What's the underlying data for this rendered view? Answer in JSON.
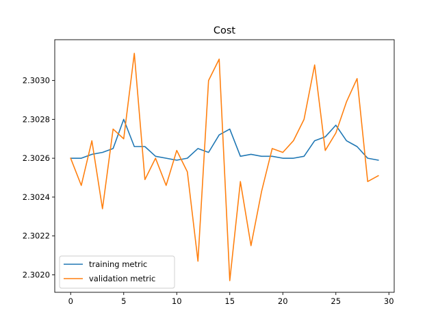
{
  "chart_data": {
    "type": "line",
    "title": "Cost",
    "xlabel": "",
    "ylabel": "",
    "xlim": [
      -1.5,
      30.5
    ],
    "ylim": [
      2.30191,
      2.30321
    ],
    "xticks": [
      0,
      5,
      10,
      15,
      20,
      25,
      30
    ],
    "yticks": [
      2.302,
      2.3022,
      2.3024,
      2.3026,
      2.3028,
      2.303
    ],
    "ytick_labels": [
      "2.3020",
      "2.3022",
      "2.3024",
      "2.3026",
      "2.3028",
      "2.3030"
    ],
    "grid": false,
    "legend_position": "lower-left",
    "x": [
      0,
      1,
      2,
      3,
      4,
      5,
      6,
      7,
      8,
      9,
      10,
      11,
      12,
      13,
      14,
      15,
      16,
      17,
      18,
      19,
      20,
      21,
      22,
      23,
      24,
      25,
      26,
      27,
      28,
      29
    ],
    "series": [
      {
        "name": "training metric",
        "color": "#1f77b4",
        "values": [
          2.3026,
          2.3026,
          2.30262,
          2.30263,
          2.30265,
          2.3028,
          2.30266,
          2.30266,
          2.30261,
          2.3026,
          2.30259,
          2.3026,
          2.30265,
          2.30263,
          2.30272,
          2.30275,
          2.30261,
          2.30262,
          2.30261,
          2.30261,
          2.3026,
          2.3026,
          2.30261,
          2.30269,
          2.30271,
          2.30277,
          2.30269,
          2.30266,
          2.3026,
          2.30259
        ]
      },
      {
        "name": "validation metric",
        "color": "#ff7f0e",
        "values": [
          2.3026,
          2.30246,
          2.30269,
          2.30234,
          2.30275,
          2.3027,
          2.30314,
          2.30249,
          2.3026,
          2.30246,
          2.30264,
          2.30253,
          2.30207,
          2.303,
          2.30311,
          2.30197,
          2.30248,
          2.30215,
          2.30243,
          2.30265,
          2.30263,
          2.30269,
          2.3028,
          2.30308,
          2.30264,
          2.30273,
          2.30289,
          2.30301,
          2.30248,
          2.30251
        ]
      }
    ]
  }
}
